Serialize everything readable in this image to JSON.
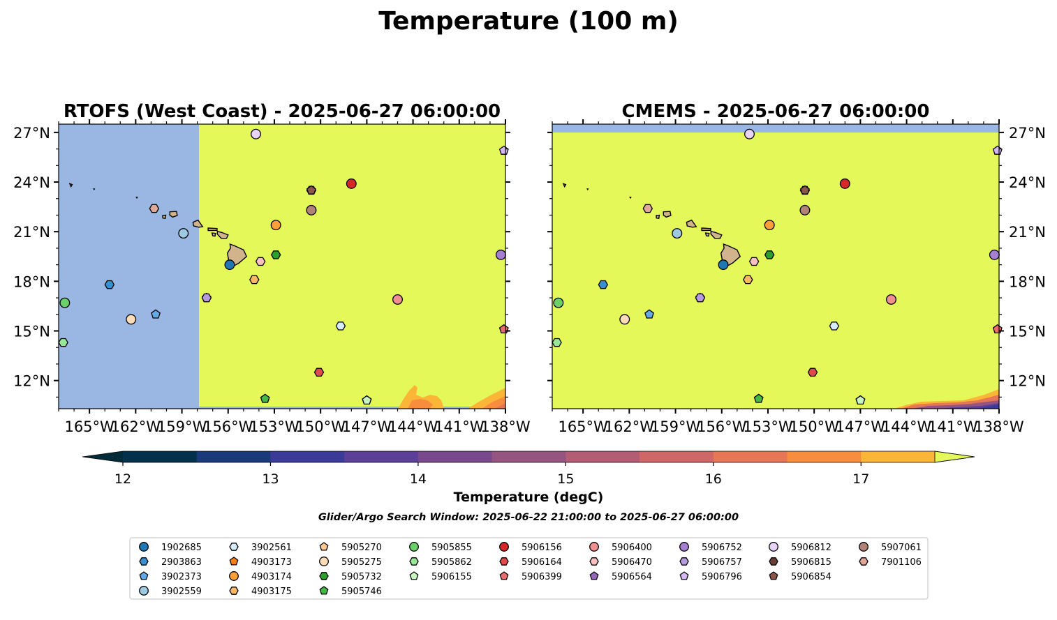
{
  "figure": {
    "title": "Temperature (100 m)",
    "note": "Glider/Argo Search Window: 2025-06-22 21:00:00 to 2025-06-27 06:00:00"
  },
  "colorbar": {
    "label": "Temperature (degC)",
    "ticks": [
      "12",
      "13",
      "14",
      "15",
      "16",
      "17"
    ],
    "levels": [
      12.0,
      12.5,
      13.0,
      13.5,
      14.0,
      14.5,
      15.0,
      15.5,
      16.0,
      16.5,
      17.0,
      17.5
    ],
    "colors": [
      "#03304a",
      "#1a3a7a",
      "#3b3a98",
      "#5b3f98",
      "#784a8c",
      "#965580",
      "#b35c73",
      "#cf6769",
      "#e67655",
      "#f78d3d",
      "#fbb638",
      "#f6d443"
    ],
    "under_color": "#022b3a",
    "over_color": "#e5f85a"
  },
  "colors": {
    "ocean_warm": "#e5f85a",
    "land_mask": "#99b7e2",
    "island_fill": "#d2b48c"
  },
  "chart_data": [
    {
      "type": "heatmap",
      "title": "RTOFS (West Coast) - 2025-06-27 06:00:00",
      "xlim": [
        -167,
        -138
      ],
      "ylim": [
        10.3,
        27.5
      ],
      "x_ticks": [
        "165°W",
        "162°W",
        "159°W",
        "156°W",
        "153°W",
        "150°W",
        "147°W",
        "144°W",
        "141°W",
        "138°W"
      ],
      "y_ticks": [
        "27°N",
        "24°N",
        "21°N",
        "18°N",
        "15°N",
        "12°N"
      ],
      "ytick_side": "left",
      "no_data_west_of_lon": -157.9,
      "field_description": "above 17.5 degC nearly everywhere; 16-17.5 degC patches near 10.5-11.5N at 144-138W"
    },
    {
      "type": "heatmap",
      "title": "CMEMS - 2025-06-27 06:00:00",
      "xlim": [
        -167,
        -138
      ],
      "ylim": [
        10.3,
        27.5
      ],
      "x_ticks": [
        "165°W",
        "162°W",
        "159°W",
        "156°W",
        "153°W",
        "150°W",
        "147°W",
        "144°W",
        "141°W",
        "138°W"
      ],
      "y_ticks": [
        "27°N",
        "24°N",
        "21°N",
        "18°N",
        "15°N",
        "12°N"
      ],
      "ytick_side": "right",
      "no_data_north_of_lat": 27.0,
      "field_description": "above 17.5 degC nearly everywhere; 13-17 degC band south of 11.5N near 144-138W"
    }
  ],
  "platforms": [
    {
      "id": "1902685",
      "marker": "circle",
      "color": "#1f77b4",
      "lon": -155.9,
      "lat": 19.0
    },
    {
      "id": "2903863",
      "marker": "hexagon",
      "color": "#3a8fd0",
      "lon": -163.7,
      "lat": 17.8
    },
    {
      "id": "3902373",
      "marker": "pentagon",
      "color": "#64a9e8",
      "lon": -160.7,
      "lat": 16.0
    },
    {
      "id": "3902559",
      "marker": "circle",
      "color": "#9ecae1",
      "lon": -158.9,
      "lat": 20.9
    },
    {
      "id": "3902561",
      "marker": "hexagon",
      "color": "#d6ecfa",
      "lon": -148.7,
      "lat": 15.3
    },
    {
      "id": "4903173",
      "marker": "pentagon",
      "color": "#ff7f0e",
      "lon": -147.0,
      "lat": 10.8
    },
    {
      "id": "4903174",
      "marker": "circle",
      "color": "#ff9f3a",
      "lon": -152.9,
      "lat": 21.4
    },
    {
      "id": "4903175",
      "marker": "hexagon",
      "color": "#ffb866",
      "lon": -154.3,
      "lat": 18.1
    },
    {
      "id": "5905270",
      "marker": "pentagon",
      "color": "#ffc98f",
      "lon": -147.0,
      "lat": 10.8
    },
    {
      "id": "5905275",
      "marker": "circle",
      "color": "#ffdcb8",
      "lon": -162.3,
      "lat": 15.7
    },
    {
      "id": "5905732",
      "marker": "hexagon",
      "color": "#2ca02c",
      "lon": -152.9,
      "lat": 19.6
    },
    {
      "id": "5905746",
      "marker": "pentagon",
      "color": "#45b845",
      "lon": -153.6,
      "lat": 10.9
    },
    {
      "id": "5905855",
      "marker": "circle",
      "color": "#6bd06b",
      "lon": -166.6,
      "lat": 16.7
    },
    {
      "id": "5905862",
      "marker": "hexagon",
      "color": "#98e698",
      "lon": -166.7,
      "lat": 14.3
    },
    {
      "id": "5906155",
      "marker": "pentagon",
      "color": "#c8f5c0",
      "lon": -147.0,
      "lat": 10.8
    },
    {
      "id": "5906156",
      "marker": "circle",
      "color": "#d62728",
      "lon": -148.0,
      "lat": 23.9
    },
    {
      "id": "5906164",
      "marker": "hexagon",
      "color": "#e04a4a",
      "lon": -150.1,
      "lat": 12.5
    },
    {
      "id": "5906399",
      "marker": "pentagon",
      "color": "#ea6c6c",
      "lon": -138.1,
      "lat": 15.1
    },
    {
      "id": "5906400",
      "marker": "circle",
      "color": "#f09090",
      "lon": -145.0,
      "lat": 16.9
    },
    {
      "id": "5906470",
      "marker": "hexagon",
      "color": "#fbc0c0",
      "lon": -153.9,
      "lat": 19.2
    },
    {
      "id": "5906564",
      "marker": "pentagon",
      "color": "#9467bd",
      "lon": -157.4,
      "lat": 17.0
    },
    {
      "id": "5906752",
      "marker": "circle",
      "color": "#a57fd0",
      "lon": -138.3,
      "lat": 19.6
    },
    {
      "id": "5906757",
      "marker": "hexagon",
      "color": "#b89ae0",
      "lon": -157.4,
      "lat": 17.0
    },
    {
      "id": "5906796",
      "marker": "pentagon",
      "color": "#d3b8f5",
      "lon": -138.1,
      "lat": 25.9
    },
    {
      "id": "5906812",
      "marker": "circle",
      "color": "#e8d4fb",
      "lon": -154.2,
      "lat": 26.9
    },
    {
      "id": "5906815",
      "marker": "hexagon",
      "color": "#6b3f36",
      "lon": -150.6,
      "lat": 23.5
    },
    {
      "id": "5906854",
      "marker": "pentagon",
      "color": "#8c564b",
      "lon": -150.6,
      "lat": 23.5
    },
    {
      "id": "5907061",
      "marker": "circle",
      "color": "#b08278",
      "lon": -150.6,
      "lat": 22.3
    },
    {
      "id": "7901106",
      "marker": "hexagon",
      "color": "#e0a898",
      "lon": -160.8,
      "lat": 22.4
    }
  ]
}
